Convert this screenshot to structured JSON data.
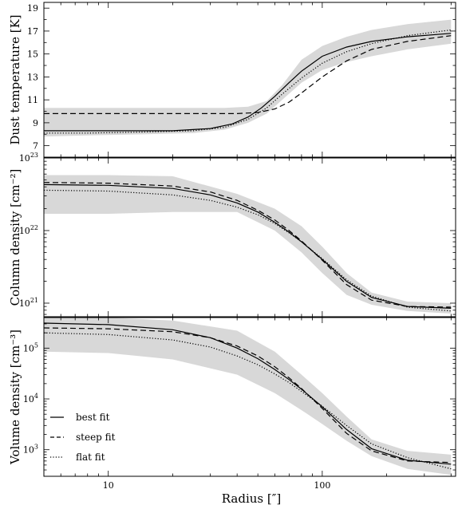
{
  "chart_data": [
    {
      "type": "line",
      "panel": "top",
      "ylabel": "Dust temperature [K]",
      "yscale": "linear",
      "ylim": [
        6,
        19.5
      ],
      "yticks": [
        7,
        9,
        11,
        13,
        15,
        17,
        19
      ],
      "grid": false,
      "band": {
        "x": [
          5,
          8,
          15,
          25,
          35,
          45,
          55,
          65,
          80,
          100,
          130,
          170,
          250,
          400
        ],
        "lower": [
          7.8,
          7.9,
          8.0,
          8.1,
          8.4,
          9.0,
          9.8,
          11.0,
          12.5,
          13.6,
          14.3,
          14.8,
          15.4,
          15.9
        ],
        "upper": [
          10.3,
          10.3,
          10.3,
          10.3,
          10.3,
          10.4,
          10.9,
          12.3,
          14.5,
          15.7,
          16.5,
          17.1,
          17.6,
          18.0
        ]
      },
      "series": [
        {
          "name": "best fit",
          "x": [
            5,
            8,
            12,
            20,
            30,
            38,
            45,
            52,
            60,
            70,
            80,
            100,
            130,
            170,
            250,
            400
          ],
          "values": [
            8.3,
            8.3,
            8.3,
            8.3,
            8.5,
            8.9,
            9.5,
            10.3,
            11.3,
            12.5,
            13.5,
            14.8,
            15.6,
            16.1,
            16.5,
            16.8
          ]
        },
        {
          "name": "steep fit",
          "x": [
            5,
            10,
            20,
            30,
            40,
            50,
            60,
            70,
            80,
            100,
            130,
            170,
            250,
            400
          ],
          "values": [
            9.8,
            9.8,
            9.8,
            9.8,
            9.8,
            9.9,
            10.2,
            10.8,
            11.6,
            13.0,
            14.4,
            15.4,
            16.1,
            16.6
          ]
        },
        {
          "name": "flat fit",
          "x": [
            5,
            8,
            15,
            25,
            35,
            45,
            55,
            65,
            80,
            100,
            130,
            170,
            250,
            400
          ],
          "values": [
            8.1,
            8.1,
            8.2,
            8.3,
            8.6,
            9.3,
            10.3,
            11.5,
            12.9,
            14.2,
            15.2,
            15.9,
            16.6,
            17.1
          ]
        }
      ]
    },
    {
      "type": "line",
      "panel": "middle",
      "ylabel": "Column density [cm⁻²]",
      "yscale": "log",
      "ylim": [
        6.5e+20,
        1e+23
      ],
      "yticks": [
        {
          "value": 1e+21,
          "base": "10",
          "exp": "21"
        },
        {
          "value": 1e+22,
          "base": "10",
          "exp": "22"
        },
        {
          "value": 1e+23,
          "base": "10",
          "exp": "23"
        }
      ],
      "grid": false,
      "band": {
        "x": [
          5,
          10,
          20,
          40,
          60,
          80,
          100,
          130,
          170,
          250,
          400
        ],
        "lower": [
          1.7e+22,
          1.7e+22,
          1.8e+22,
          1.8e+22,
          1e+22,
          5e+21,
          2.6e+21,
          1.3e+21,
          9.5e+20,
          7.8e+20,
          7.2e+20
        ],
        "upper": [
          5.8e+22,
          5.8e+22,
          5.6e+22,
          3.2e+22,
          2e+22,
          1.15e+22,
          6e+21,
          2.6e+21,
          1.4e+21,
          1.05e+21,
          1e+21
        ]
      },
      "series": [
        {
          "name": "best fit",
          "x": [
            5,
            10,
            20,
            30,
            40,
            50,
            60,
            70,
            80,
            100,
            130,
            170,
            250,
            400
          ],
          "values": [
            4.3e+22,
            4.2e+22,
            3.8e+22,
            3.1e+22,
            2.4e+22,
            1.8e+22,
            1.3e+22,
            9.5e+21,
            7e+21,
            4e+21,
            2e+21,
            1.2e+21,
            9e+20,
            8.5e+20
          ]
        },
        {
          "name": "steep fit",
          "x": [
            5,
            10,
            20,
            30,
            40,
            50,
            60,
            70,
            80,
            100,
            130,
            170,
            250,
            400
          ],
          "values": [
            4.6e+22,
            4.5e+22,
            4.1e+22,
            3.4e+22,
            2.6e+22,
            1.9e+22,
            1.4e+22,
            1e+22,
            7.2e+21,
            3.9e+21,
            1.8e+21,
            1.1e+21,
            9e+20,
            8.8e+20
          ]
        },
        {
          "name": "flat fit",
          "x": [
            5,
            10,
            20,
            30,
            40,
            50,
            60,
            70,
            80,
            100,
            130,
            170,
            250,
            400
          ],
          "values": [
            3.6e+22,
            3.5e+22,
            3.1e+22,
            2.6e+22,
            2.1e+22,
            1.65e+22,
            1.25e+22,
            9.3e+21,
            7e+21,
            4.1e+21,
            2.1e+21,
            1.25e+21,
            8.8e+20,
            7.8e+20
          ]
        }
      ]
    },
    {
      "type": "line",
      "panel": "bottom",
      "ylabel": "Volume density [cm⁻³]",
      "yscale": "log",
      "ylim": [
        300,
        400000.0
      ],
      "yticks": [
        {
          "value": 1000,
          "base": "10",
          "exp": "3"
        },
        {
          "value": 10000,
          "base": "10",
          "exp": "4"
        },
        {
          "value": 100000,
          "base": "10",
          "exp": "5"
        }
      ],
      "xlabel": "Radius [″]",
      "xscale": "log",
      "xlim": [
        5,
        420
      ],
      "xticks": [
        {
          "value": 10,
          "label": "10"
        },
        {
          "value": 100,
          "label": "100"
        }
      ],
      "grid": false,
      "legend": {
        "position": "bottom-left",
        "entries": [
          "best fit",
          "steep fit",
          "flat fit"
        ]
      },
      "band": {
        "x": [
          5,
          10,
          20,
          40,
          60,
          80,
          100,
          130,
          170,
          250,
          400
        ],
        "lower": [
          85000.0,
          80000.0,
          60000.0,
          30000.0,
          13000.0,
          6000.0,
          3200.0,
          1500.0,
          750,
          420,
          320
        ],
        "upper": [
          400000.0,
          400000.0,
          350000.0,
          220000.0,
          85000.0,
          30000.0,
          13000.0,
          4500.0,
          1600.0,
          950,
          800
        ]
      },
      "series": [
        {
          "name": "best fit",
          "x": [
            5,
            10,
            20,
            30,
            40,
            50,
            60,
            70,
            80,
            100,
            130,
            170,
            250,
            400
          ],
          "values": [
            310000.0,
            290000.0,
            230000.0,
            160000.0,
            100000.0,
            62000.0,
            38000.0,
            24000.0,
            15500.0,
            7000.0,
            2500.0,
            1050.0,
            620,
            520
          ]
        },
        {
          "name": "steep fit",
          "x": [
            5,
            10,
            20,
            30,
            40,
            50,
            60,
            70,
            80,
            100,
            130,
            170,
            250,
            400
          ],
          "values": [
            250000.0,
            240000.0,
            210000.0,
            160000.0,
            110000.0,
            70000.0,
            43000.0,
            26000.0,
            16000.0,
            6500.0,
            2100.0,
            950,
            600,
            560
          ]
        },
        {
          "name": "flat fit",
          "x": [
            5,
            10,
            20,
            30,
            40,
            50,
            60,
            70,
            80,
            100,
            130,
            170,
            250,
            400
          ],
          "values": [
            200000.0,
            185000.0,
            145000.0,
            105000.0,
            70000.0,
            47000.0,
            31000.0,
            21000.0,
            14000.0,
            7200.0,
            3000.0,
            1300.0,
            700,
            420
          ]
        }
      ]
    }
  ]
}
